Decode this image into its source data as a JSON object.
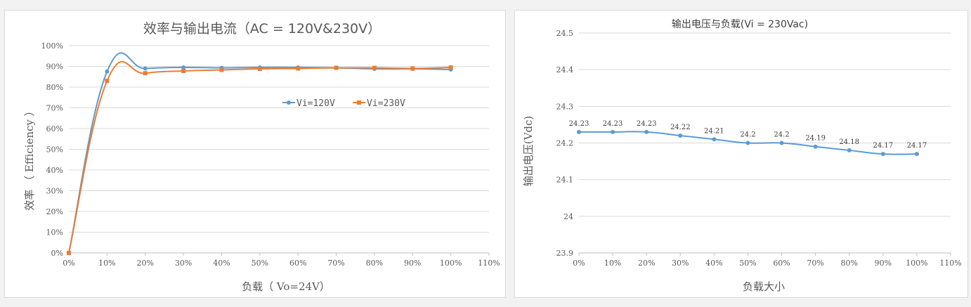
{
  "colors": {
    "series1": "#5b9bd5",
    "series2": "#ed7d31",
    "grid": "#d9d9d9",
    "axis": "#bfbfbf"
  },
  "chart_data": [
    {
      "type": "line",
      "title": "效率与输出电流（AC = 120V&230V）",
      "xlabel": "负载（ Vo=24V）",
      "ylabel": "效率 （ Efficiency ）",
      "x": [
        0,
        10,
        20,
        30,
        40,
        50,
        60,
        70,
        80,
        90,
        100
      ],
      "xlim": [
        0,
        110
      ],
      "x_ticks": [
        "0%",
        "10%",
        "20%",
        "30%",
        "40%",
        "50%",
        "60%",
        "70%",
        "80%",
        "90%",
        "100%",
        "110%"
      ],
      "ylim": [
        0,
        100
      ],
      "y_ticks": [
        "0%",
        "10%",
        "20%",
        "30%",
        "40%",
        "50%",
        "60%",
        "70%",
        "80%",
        "90%",
        "100%"
      ],
      "grid": true,
      "legend_position": "right-center",
      "series": [
        {
          "name": "Vi=120V",
          "values": [
            0,
            87.5,
            89,
            89.5,
            89.3,
            89.5,
            89.5,
            89.3,
            88.8,
            88.8,
            88.5
          ]
        },
        {
          "name": "Vi=230V",
          "values": [
            0,
            83,
            86.7,
            87.8,
            88.3,
            88.8,
            89,
            89.3,
            89.3,
            89,
            89.5
          ]
        }
      ]
    },
    {
      "type": "line",
      "title": "输出电压与负载(Vi = 230Vac)",
      "xlabel": "负载大小",
      "ylabel": "输出电压(Vdc)",
      "x": [
        0,
        10,
        20,
        30,
        40,
        50,
        60,
        70,
        80,
        90,
        100
      ],
      "xlim": [
        0,
        110
      ],
      "x_ticks": [
        "0%",
        "10%",
        "20%",
        "30%",
        "40%",
        "50%",
        "60%",
        "70%",
        "80%",
        "90%",
        "100%",
        "110%"
      ],
      "ylim": [
        23.9,
        24.5
      ],
      "y_ticks": [
        "23.9",
        "24",
        "24.1",
        "24.2",
        "24.3",
        "24.4",
        "24.5"
      ],
      "grid": true,
      "series": [
        {
          "name": "Vi=230Vac",
          "values": [
            24.23,
            24.23,
            24.23,
            24.22,
            24.21,
            24.2,
            24.2,
            24.19,
            24.18,
            24.17,
            24.17
          ]
        }
      ],
      "data_labels": [
        "24.23",
        "24.23",
        "24.23",
        "24.22",
        "24.21",
        "24.2",
        "24.2",
        "24.19",
        "24.18",
        "24.17",
        "24.17"
      ]
    }
  ]
}
